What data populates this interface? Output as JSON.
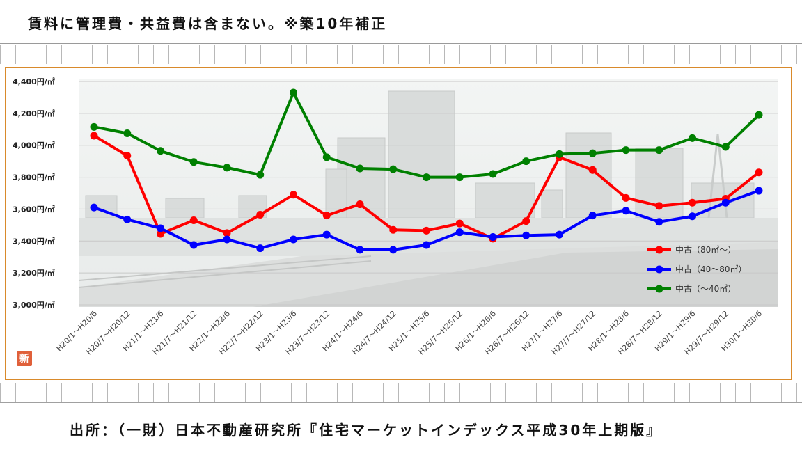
{
  "header": {
    "note": "賃料に管理費・共益費は含まない。※築10年補正"
  },
  "footer": {
    "source": "出所：（一財）日本不動産研究所『住宅マーケットインデックス平成30年上期版』"
  },
  "badge": {
    "label": "新"
  },
  "chart_data": {
    "type": "line",
    "title": "",
    "xlabel": "",
    "ylabel": "",
    "ylim": [
      3000,
      4400
    ],
    "y_ticks": [
      {
        "value": 3000,
        "label": "3,000円/㎡"
      },
      {
        "value": 3200,
        "label": "3,200円/㎡"
      },
      {
        "value": 3400,
        "label": "3,400円/㎡"
      },
      {
        "value": 3600,
        "label": "3,600円/㎡"
      },
      {
        "value": 3800,
        "label": "3,800円/㎡"
      },
      {
        "value": 4000,
        "label": "4,000円/㎡"
      },
      {
        "value": 4200,
        "label": "4,200円/㎡"
      },
      {
        "value": 4400,
        "label": "4,400円/㎡"
      }
    ],
    "categories": [
      "H20/1～H20/6",
      "H20/7～H20/12",
      "H21/1～H21/6",
      "H21/7～H21/12",
      "H22/1～H22/6",
      "H22/7～H22/12",
      "H23/1～H23/6",
      "H23/7～H23/12",
      "H24/1～H24/6",
      "H24/7～H24/12",
      "H25/1～H25/6",
      "H25/7～H25/12",
      "H26/1～H26/6",
      "H26/7～H26/12",
      "H27/1～H27/6",
      "H27/7～H27/12",
      "H28/1～H28/6",
      "H28/7～H28/12",
      "H29/1～H29/6",
      "H29/7～H29/12",
      "H30/1～H30/6"
    ],
    "grid": true,
    "legend_position": "bottom-right",
    "series": [
      {
        "name": "中古（80㎡～）",
        "color": "#ff0000",
        "values": [
          4060,
          3935,
          3445,
          3530,
          3450,
          3565,
          3690,
          3560,
          3630,
          3470,
          3465,
          3510,
          3415,
          3525,
          3925,
          3845,
          3670,
          3620,
          3640,
          3665,
          3830
        ]
      },
      {
        "name": "中古（40～80㎡）",
        "color": "#0000ff",
        "values": [
          3610,
          3535,
          3480,
          3375,
          3410,
          3355,
          3410,
          3440,
          3345,
          3345,
          3375,
          3455,
          3425,
          3435,
          3440,
          3560,
          3590,
          3520,
          3555,
          3640,
          3715
        ]
      },
      {
        "name": "中古（～40㎡）",
        "color": "#008000",
        "values": [
          4115,
          4075,
          3965,
          3895,
          3860,
          3815,
          4330,
          3925,
          3855,
          3850,
          3800,
          3800,
          3820,
          3900,
          3945,
          3950,
          3970,
          3970,
          4045,
          3990,
          4190
        ]
      }
    ]
  }
}
